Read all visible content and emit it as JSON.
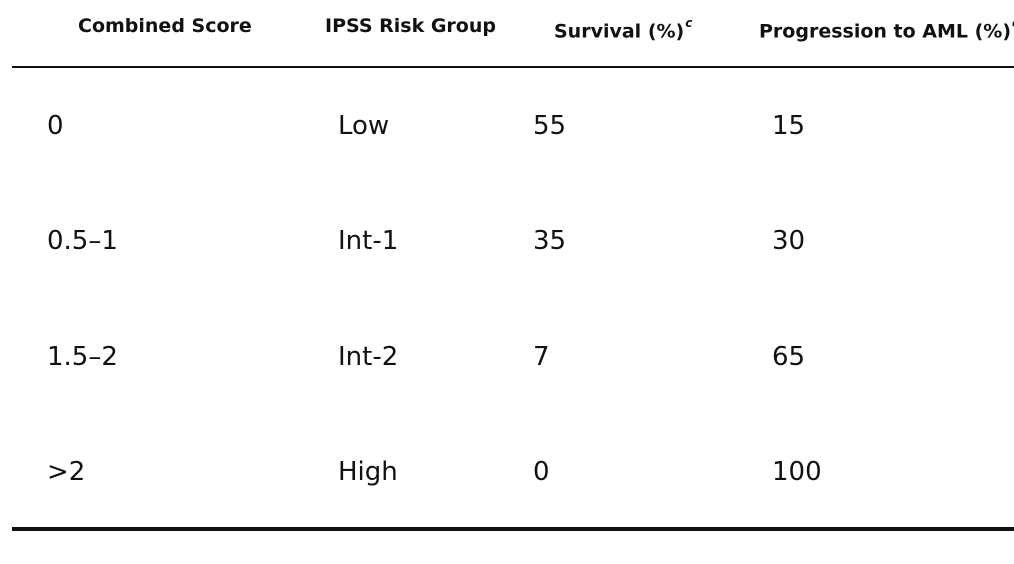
{
  "table": {
    "headers": [
      {
        "label": "Combined Score",
        "sup": ""
      },
      {
        "label": "IPSS Risk Group",
        "sup": ""
      },
      {
        "label": "Survival (%)",
        "sup": "c"
      },
      {
        "label": "Progression to AML (%)",
        "sup": "c"
      }
    ],
    "rows": [
      {
        "score": "0",
        "group": "Low",
        "survival": "55",
        "progression": "15"
      },
      {
        "score": "0.5–1",
        "group": "Int-1",
        "survival": "35",
        "progression": "30"
      },
      {
        "score": "1.5–2",
        "group": "Int-2",
        "survival": "7",
        "progression": "65"
      },
      {
        "score": ">2",
        "group": "High",
        "survival": "0",
        "progression": "100"
      }
    ]
  }
}
